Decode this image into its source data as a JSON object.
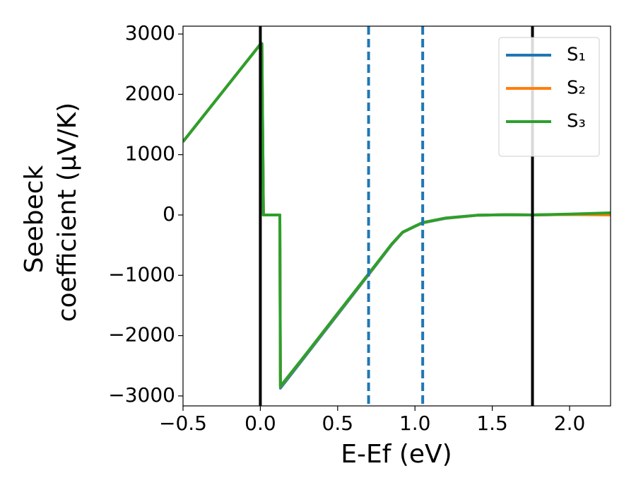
{
  "chart_data": {
    "type": "line",
    "xlabel": "E-Ef (eV)",
    "ylabel": [
      "Seebeck",
      "coefficient  (μV/K)"
    ],
    "x": [
      -0.5,
      0.0,
      0.01,
      0.02,
      0.126,
      0.13,
      0.3,
      0.5,
      0.7,
      0.85,
      0.92,
      1.0,
      1.05,
      1.2,
      1.4,
      1.6,
      1.76,
      2.0,
      2.265
    ],
    "series": [
      {
        "name": "S₁",
        "color": "#1f77b4",
        "values": [
          1215,
          2830,
          2840,
          0,
          0,
          -2870,
          -2310,
          -1650,
          -990,
          -490,
          -290,
          -190,
          -130,
          -55,
          -5,
          5,
          0,
          10,
          30
        ]
      },
      {
        "name": "S₂",
        "color": "#ff7f0e",
        "values": [
          1215,
          2830,
          2840,
          0,
          0,
          -2845,
          -2295,
          -1635,
          -980,
          -482,
          -287,
          -187,
          -127,
          -52,
          -5,
          5,
          0,
          8,
          0
        ]
      },
      {
        "name": "S₃",
        "color": "#2ca02c",
        "values": [
          1215,
          2830,
          2840,
          0,
          0,
          -2840,
          -2290,
          -1630,
          -975,
          -480,
          -285,
          -185,
          -125,
          -50,
          -5,
          5,
          0,
          15,
          35
        ]
      }
    ],
    "vlines": [
      {
        "x": 0.0,
        "color": "#000000",
        "style": "solid"
      },
      {
        "x": 1.76,
        "color": "#000000",
        "style": "solid"
      },
      {
        "x": 0.7,
        "color": "#1f77b4",
        "style": "dashed"
      },
      {
        "x": 1.05,
        "color": "#1f77b4",
        "style": "dashed"
      }
    ],
    "xlim": [
      -0.5,
      2.265
    ],
    "ylim": [
      -3165,
      3130
    ],
    "xticks": [
      {
        "value": -0.5,
        "label": "−0.5"
      },
      {
        "value": 0,
        "label": "0.0"
      },
      0.5,
      {
        "value": 1,
        "label": "1.0"
      },
      1.5,
      {
        "value": 2,
        "label": "2.0"
      }
    ],
    "yticks": [
      {
        "value": -3000,
        "label": "−3000"
      },
      {
        "value": -2000,
        "label": "−2000"
      },
      {
        "value": -1000,
        "label": "−1000"
      },
      0,
      1000,
      2000,
      3000
    ],
    "grid": false,
    "legend": "upper right"
  }
}
